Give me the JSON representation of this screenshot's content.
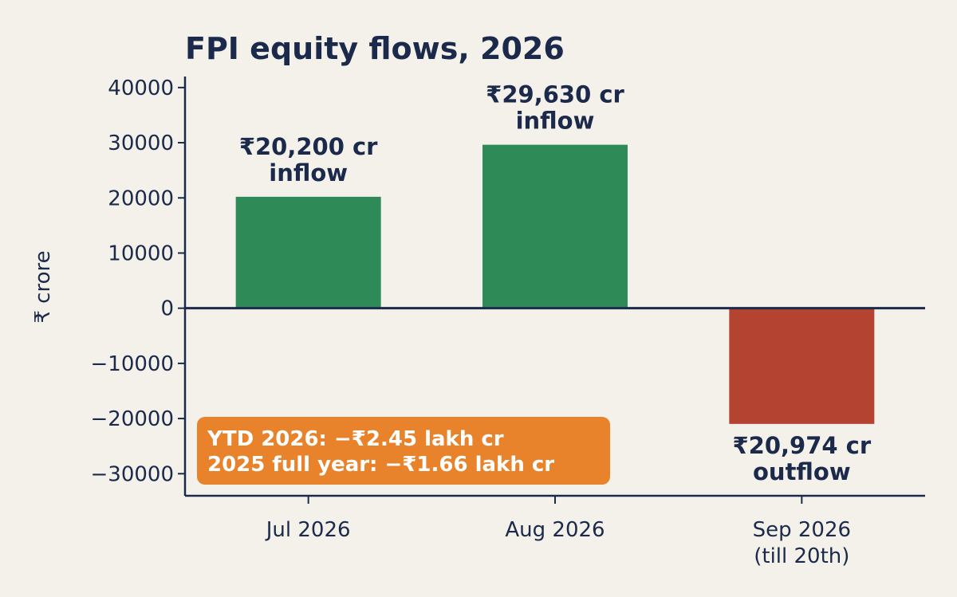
{
  "chart_data": {
    "type": "bar",
    "title": "FPI equity flows, 2026",
    "ylabel": "₹ crore",
    "xlabel": "",
    "ylim": [
      -34000,
      42000
    ],
    "yticks": [
      40000,
      30000,
      20000,
      10000,
      0,
      -10000,
      -20000,
      -30000
    ],
    "ytick_labels": [
      "40000",
      "30000",
      "20000",
      "10000",
      "0",
      "−10000",
      "−20000",
      "−30000"
    ],
    "categories": [
      [
        "Jul 2026"
      ],
      [
        "Aug 2026"
      ],
      [
        "Sep 2026",
        "(till 20th)"
      ]
    ],
    "values": [
      20200,
      29630,
      -20974
    ],
    "colors": [
      "#2e8b57",
      "#2e8b57",
      "#b44431"
    ],
    "data_labels": [
      [
        "₹20,200 cr",
        "inflow"
      ],
      [
        "₹29,630 cr",
        "inflow"
      ],
      [
        "₹20,974 cr",
        "outflow"
      ]
    ],
    "annotation": {
      "lines": [
        "YTD 2026: −₹2.45 lakh cr",
        "2025 full year: −₹1.66 lakh cr"
      ],
      "color": "#e8832b",
      "placement": "bottom-left"
    },
    "zero_line": true,
    "grid": false
  }
}
